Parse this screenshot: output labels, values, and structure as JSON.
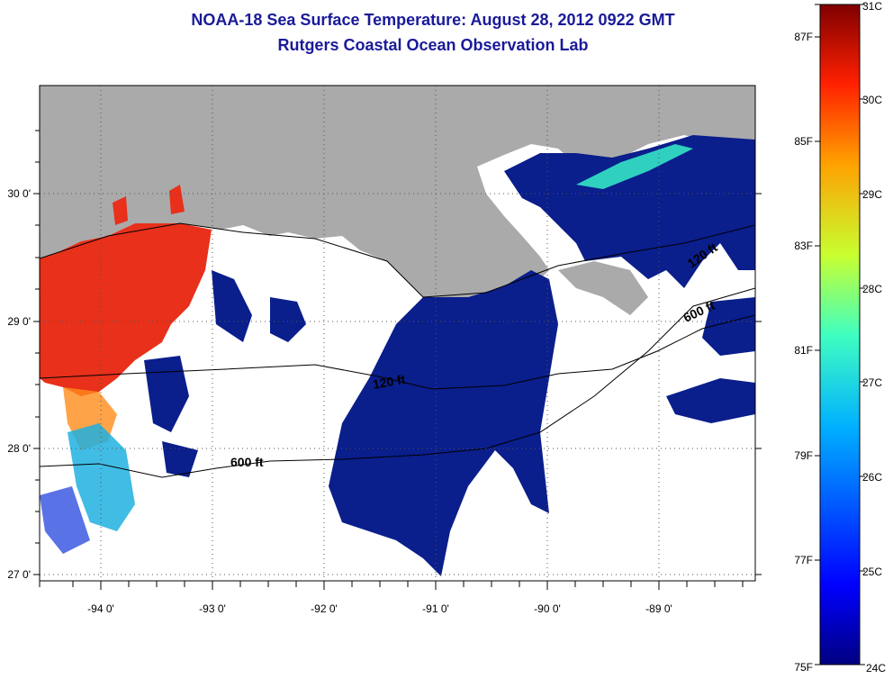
{
  "title": "NOAA-18 Sea Surface Temperature:  August 28, 2012 0922 GMT",
  "subtitle": "Rutgers Coastal Ocean Observation Lab",
  "map": {
    "lon_labels": [
      "-94 0'",
      "-93 0'",
      "-92 0'",
      "-91 0'",
      "-90 0'",
      "-89 0'"
    ],
    "lat_labels": [
      "30 0'",
      "29 0'",
      "28 0'",
      "27 0'"
    ],
    "isobaths": [
      "600 ft",
      "120 ft",
      "120 ft",
      "600 ft"
    ],
    "colors": {
      "land": "#aaaaaa",
      "cloud": "#ffffff",
      "warm": "#e8301a",
      "cold": "#0a1e8c"
    }
  },
  "colorbar": {
    "celsius": [
      "31C",
      "30C",
      "29C",
      "28C",
      "27C",
      "26C",
      "25C",
      "24C"
    ],
    "fahrenheit": [
      "87F",
      "85F",
      "83F",
      "81F",
      "79F",
      "77F",
      "75F"
    ]
  }
}
